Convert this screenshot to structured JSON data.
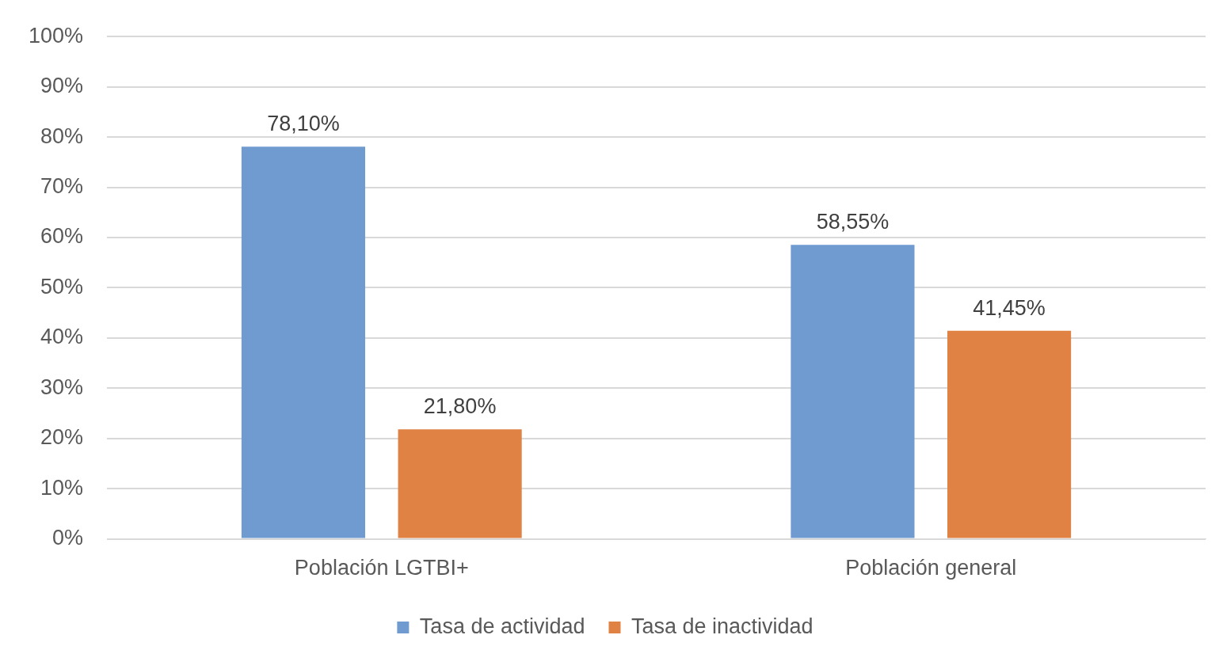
{
  "chart_data": {
    "type": "bar",
    "categories": [
      "Población LGTBI+",
      "Población general"
    ],
    "series": [
      {
        "name": "Tasa de actividad",
        "color": "#6f9bd0",
        "values": [
          78.1,
          58.55
        ],
        "value_labels": [
          "78,10%",
          "58,55%"
        ]
      },
      {
        "name": "Tasa de inactividad",
        "color": "#df8244",
        "values": [
          21.8,
          41.45
        ],
        "value_labels": [
          "21,80%",
          "41,45%"
        ]
      }
    ],
    "ylim": [
      0,
      100
    ],
    "yticks": [
      {
        "value": 0,
        "label": "0%"
      },
      {
        "value": 10,
        "label": "10%"
      },
      {
        "value": 20,
        "label": "20%"
      },
      {
        "value": 30,
        "label": "30%"
      },
      {
        "value": 40,
        "label": "40%"
      },
      {
        "value": 50,
        "label": "50%"
      },
      {
        "value": 60,
        "label": "60%"
      },
      {
        "value": 70,
        "label": "70%"
      },
      {
        "value": 80,
        "label": "80%"
      },
      {
        "value": 90,
        "label": "90%"
      },
      {
        "value": 100,
        "label": "100%"
      }
    ],
    "grid": true,
    "legend": "bottom",
    "data_labels": true
  }
}
